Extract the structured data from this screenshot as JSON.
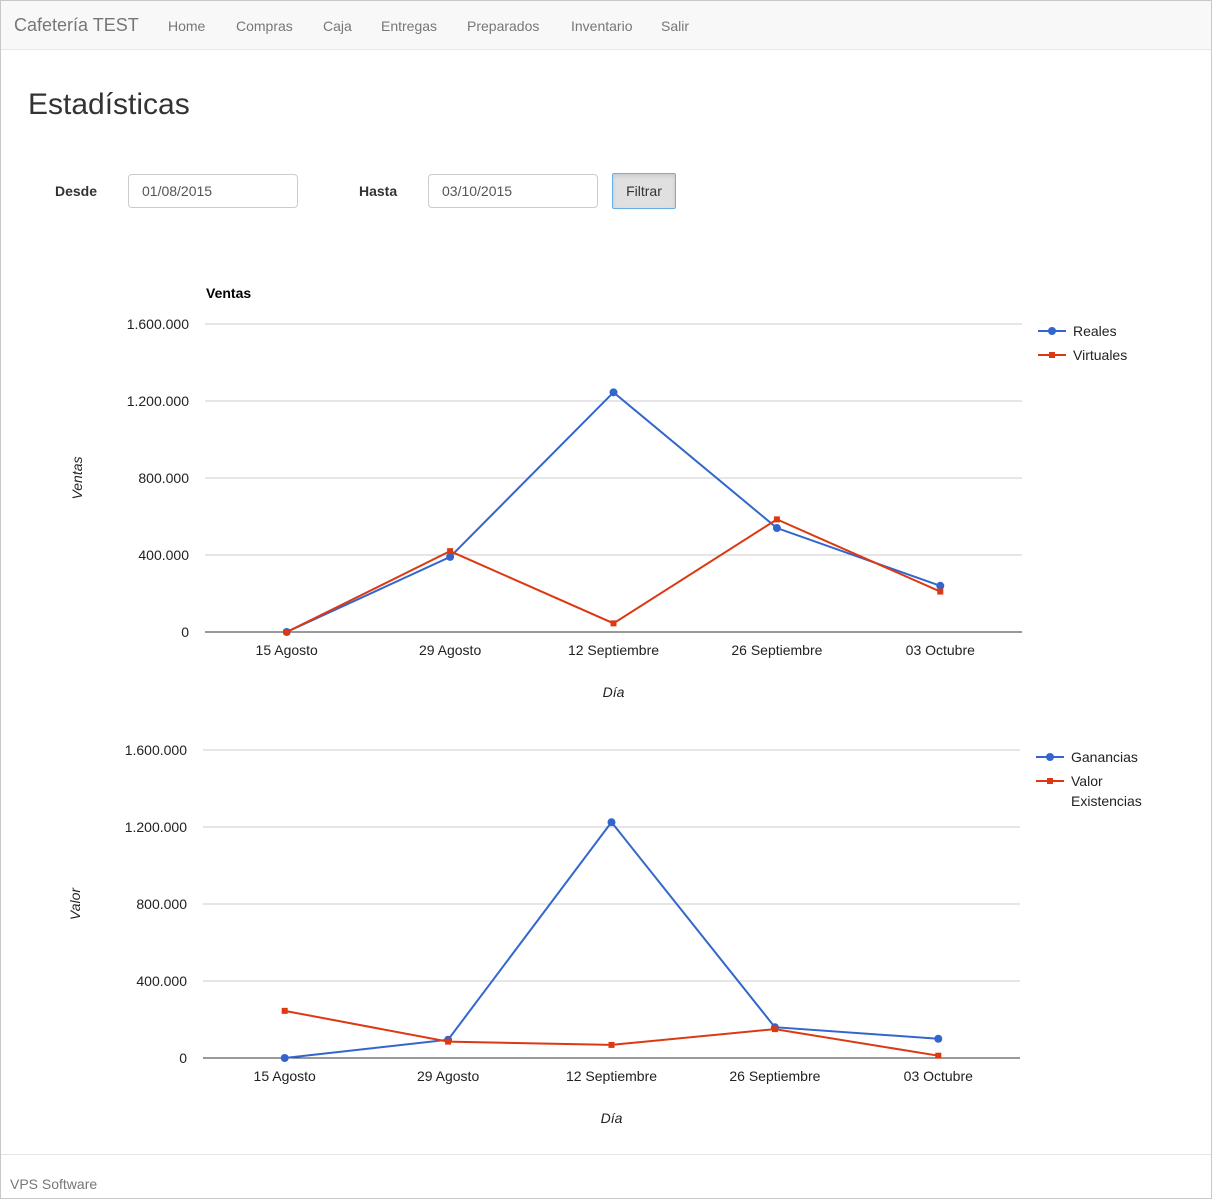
{
  "navbar": {
    "brand": "Cafetería TEST",
    "items": [
      "Home",
      "Compras",
      "Caja",
      "Entregas",
      "Preparados",
      "Inventario",
      "Salir"
    ]
  },
  "page": {
    "title": "Estadísticas"
  },
  "filter": {
    "desde_label": "Desde",
    "desde_value": "01/08/2015",
    "hasta_label": "Hasta",
    "hasta_value": "03/10/2015",
    "button_label": "Filtrar"
  },
  "colors": {
    "series1": "#3366cc",
    "series2": "#dc3912"
  },
  "chart_data": [
    {
      "type": "line",
      "title": "Ventas",
      "xlabel": "Día",
      "ylabel": "Ventas",
      "categories": [
        "15 Agosto",
        "29 Agosto",
        "12 Septiembre",
        "26 Septiembre",
        "03 Octubre"
      ],
      "ylim": [
        0,
        1600000
      ],
      "yticks": [
        "0",
        "400.000",
        "800.000",
        "1.200.000",
        "1.600.000"
      ],
      "grid": true,
      "legend_position": "right",
      "series": [
        {
          "name": "Reales",
          "values": [
            0,
            390000,
            1245000,
            540000,
            240000
          ]
        },
        {
          "name": "Virtuales",
          "values": [
            0,
            420000,
            45000,
            585000,
            210000
          ]
        }
      ]
    },
    {
      "type": "line",
      "title": "",
      "xlabel": "Día",
      "ylabel": "Valor",
      "categories": [
        "15 Agosto",
        "29 Agosto",
        "12 Septiembre",
        "26 Septiembre",
        "03 Octubre"
      ],
      "ylim": [
        0,
        1600000
      ],
      "yticks": [
        "0",
        "400.000",
        "800.000",
        "1.200.000",
        "1.600.000"
      ],
      "grid": true,
      "legend_position": "right",
      "series": [
        {
          "name": "Ganancias",
          "values": [
            0,
            95000,
            1225000,
            160000,
            100000
          ]
        },
        {
          "name": "Valor Existencias",
          "values": [
            245000,
            85000,
            68000,
            150000,
            12000
          ]
        }
      ]
    }
  ],
  "footer": {
    "text": "VPS Software"
  }
}
